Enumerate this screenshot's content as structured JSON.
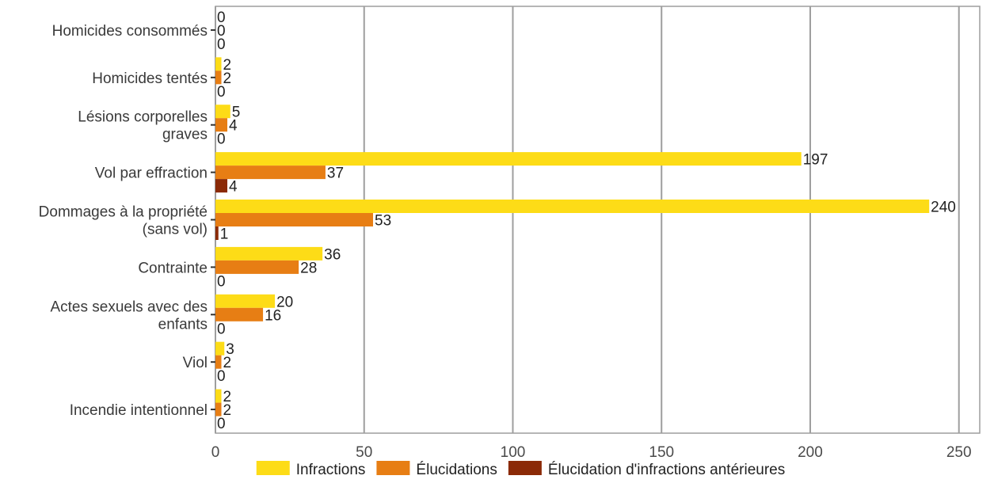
{
  "chart_data": {
    "type": "bar",
    "orientation": "horizontal",
    "categories": [
      [
        "Homicides consommés"
      ],
      [
        "Homicides tentés"
      ],
      [
        "Lésions corporelles",
        "graves"
      ],
      [
        "Vol par effraction"
      ],
      [
        "Dommages à la propriété",
        "(sans vol)"
      ],
      [
        "Contrainte"
      ],
      [
        "Actes sexuels avec des",
        "enfants"
      ],
      [
        "Viol"
      ],
      [
        "Incendie intentionnel"
      ]
    ],
    "series": [
      {
        "name": "Infractions",
        "color": "#FDDC17",
        "values": [
          0,
          2,
          5,
          197,
          240,
          36,
          20,
          3,
          2
        ]
      },
      {
        "name": "Élucidations",
        "color": "#E77E14",
        "values": [
          0,
          2,
          4,
          37,
          53,
          28,
          16,
          2,
          2
        ]
      },
      {
        "name": "Élucidation d'infractions antérieures",
        "color": "#8B2A07",
        "values": [
          0,
          0,
          0,
          4,
          1,
          0,
          0,
          0,
          0
        ]
      }
    ],
    "xlim": [
      0,
      257
    ],
    "xticks": [
      0,
      50,
      100,
      150,
      200,
      250
    ],
    "grid": true,
    "legend_position": "bottom"
  }
}
